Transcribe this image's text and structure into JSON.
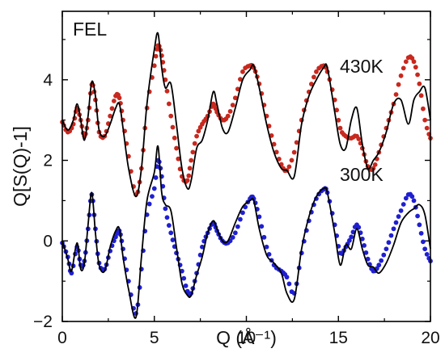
{
  "chart_data": {
    "type": "line",
    "title": "",
    "panel_label": "FEL",
    "xlabel": "Q (Å⁻¹)",
    "ylabel": "Q[S(Q)-1]",
    "xlim": [
      0,
      20
    ],
    "ylim": [
      -2,
      5.7
    ],
    "xticks": [
      0,
      5,
      10,
      15,
      20
    ],
    "xtick_labels": [
      "0",
      "5",
      "10",
      "15",
      "20"
    ],
    "yticks": [
      -2,
      0,
      2,
      4
    ],
    "ytick_labels": [
      "−2",
      "0",
      "2",
      "4"
    ],
    "grid": false,
    "annotations": [
      {
        "text": "430K",
        "x": 14.3,
        "y": 4.55
      },
      {
        "text": "300K",
        "x": 14.3,
        "y": 1.55
      }
    ],
    "colors": {
      "430K_points": "#c8281e",
      "300K_points": "#1f1fd2",
      "model": "#000000",
      "axes": "#000000"
    },
    "series": [
      {
        "group": "430K",
        "style": "dots",
        "color": "#c8281e",
        "x": [
          0.0,
          0.3,
          0.6,
          0.8,
          1.0,
          1.2,
          1.4,
          1.6,
          1.8,
          2.0,
          2.3,
          2.6,
          2.9,
          3.1,
          3.3,
          3.6,
          4.0,
          4.3,
          4.6,
          5.0,
          5.2,
          5.4,
          5.6,
          5.9,
          6.2,
          6.5,
          6.8,
          7.0,
          7.3,
          7.6,
          7.9,
          8.2,
          8.4,
          8.7,
          9.0,
          9.4,
          9.8,
          10.2,
          10.4,
          10.7,
          11.1,
          11.5,
          11.9,
          12.2,
          12.6,
          13.0,
          13.4,
          13.8,
          14.2,
          14.4,
          14.8,
          15.1,
          15.4,
          15.7,
          16.0,
          16.3,
          16.6,
          16.9,
          17.2,
          17.6,
          18.0,
          18.4,
          18.8,
          19.1,
          19.4,
          19.7,
          20.0
        ],
        "y": [
          2.95,
          2.7,
          2.9,
          3.3,
          3.0,
          2.6,
          3.0,
          3.88,
          3.5,
          2.7,
          2.6,
          3.1,
          3.6,
          3.55,
          3.0,
          2.1,
          1.15,
          1.8,
          3.3,
          4.35,
          4.85,
          4.6,
          4.0,
          3.1,
          2.3,
          1.6,
          1.5,
          2.0,
          2.6,
          2.9,
          3.1,
          3.4,
          3.2,
          3.0,
          3.1,
          3.55,
          4.2,
          4.35,
          4.3,
          3.9,
          3.1,
          2.4,
          1.9,
          1.75,
          2.2,
          3.0,
          3.7,
          4.2,
          4.35,
          4.2,
          3.5,
          2.8,
          2.6,
          2.55,
          2.6,
          2.3,
          1.85,
          1.8,
          2.2,
          2.8,
          3.4,
          4.1,
          4.55,
          4.45,
          3.9,
          3.0,
          2.55
        ]
      },
      {
        "group": "430K",
        "style": "line",
        "color": "#000000",
        "x": [
          0.0,
          0.3,
          0.6,
          0.8,
          1.0,
          1.2,
          1.4,
          1.6,
          1.8,
          2.0,
          2.3,
          2.6,
          2.9,
          3.1,
          3.3,
          3.6,
          4.0,
          4.3,
          4.6,
          5.0,
          5.2,
          5.4,
          5.6,
          5.9,
          6.2,
          6.5,
          6.8,
          7.0,
          7.3,
          7.6,
          7.9,
          8.2,
          8.4,
          8.7,
          9.0,
          9.4,
          9.8,
          10.2,
          10.4,
          10.7,
          11.1,
          11.5,
          11.9,
          12.2,
          12.6,
          13.0,
          13.4,
          13.8,
          14.2,
          14.4,
          14.8,
          15.1,
          15.4,
          15.7,
          16.0,
          16.3,
          16.6,
          16.9,
          17.2,
          17.6,
          18.0,
          18.4,
          18.8,
          19.1,
          19.4,
          19.7,
          20.0
        ],
        "y": [
          3.0,
          2.75,
          3.0,
          3.4,
          3.0,
          2.5,
          3.1,
          3.95,
          3.6,
          2.75,
          2.6,
          2.9,
          3.3,
          3.4,
          2.8,
          1.8,
          1.1,
          1.8,
          3.4,
          4.75,
          5.15,
          4.3,
          3.8,
          3.9,
          2.9,
          1.8,
          1.3,
          1.5,
          2.3,
          2.5,
          3.0,
          3.7,
          3.4,
          2.8,
          2.7,
          3.3,
          4.0,
          4.25,
          4.35,
          3.8,
          2.9,
          2.2,
          1.8,
          1.75,
          1.6,
          2.9,
          3.6,
          4.0,
          4.3,
          4.3,
          3.2,
          2.4,
          2.3,
          3.0,
          3.3,
          2.4,
          1.8,
          2.0,
          2.2,
          2.7,
          3.4,
          3.5,
          2.9,
          3.5,
          3.7,
          3.8,
          3.0
        ]
      },
      {
        "group": "300K",
        "style": "dots",
        "color": "#1f1fd2",
        "x": [
          0.0,
          0.3,
          0.5,
          0.8,
          1.0,
          1.2,
          1.4,
          1.6,
          1.8,
          2.0,
          2.3,
          2.6,
          2.9,
          3.1,
          3.3,
          3.6,
          4.0,
          4.3,
          4.6,
          5.0,
          5.2,
          5.4,
          5.6,
          5.9,
          6.2,
          6.5,
          6.8,
          7.0,
          7.3,
          7.6,
          7.9,
          8.2,
          8.4,
          8.7,
          9.0,
          9.4,
          9.8,
          10.2,
          10.4,
          10.7,
          11.1,
          11.5,
          11.9,
          12.2,
          12.6,
          13.0,
          13.4,
          13.8,
          14.2,
          14.4,
          14.8,
          15.1,
          15.4,
          15.7,
          16.0,
          16.3,
          16.6,
          16.9,
          17.2,
          17.6,
          18.0,
          18.4,
          18.8,
          19.1,
          19.4,
          19.7,
          20.0
        ],
        "y": [
          -0.05,
          -0.4,
          -0.8,
          -0.15,
          -0.6,
          -0.5,
          0.3,
          1.15,
          0.3,
          -0.55,
          -0.7,
          -0.25,
          0.1,
          0.25,
          -0.2,
          -1.0,
          -1.8,
          -0.7,
          0.65,
          1.3,
          2.0,
          1.6,
          0.8,
          0.2,
          -0.3,
          -0.75,
          -1.25,
          -1.3,
          -0.8,
          -0.15,
          0.2,
          0.45,
          0.25,
          0.0,
          -0.05,
          0.2,
          0.7,
          1.05,
          1.05,
          0.6,
          -0.15,
          -0.6,
          -0.75,
          -0.9,
          -1.3,
          -0.3,
          0.5,
          1.05,
          1.28,
          1.2,
          0.4,
          -0.3,
          -0.15,
          0.1,
          0.4,
          0.05,
          -0.45,
          -0.75,
          -0.6,
          -0.2,
          0.3,
          0.75,
          1.15,
          1.0,
          0.4,
          -0.2,
          -0.5
        ]
      },
      {
        "group": "300K",
        "style": "line",
        "color": "#000000",
        "x": [
          0.0,
          0.3,
          0.5,
          0.8,
          1.0,
          1.2,
          1.4,
          1.6,
          1.8,
          2.0,
          2.3,
          2.6,
          2.9,
          3.1,
          3.3,
          3.6,
          4.0,
          4.3,
          4.6,
          5.0,
          5.2,
          5.4,
          5.6,
          5.9,
          6.2,
          6.5,
          6.8,
          7.0,
          7.3,
          7.6,
          7.9,
          8.2,
          8.4,
          8.7,
          9.0,
          9.4,
          9.8,
          10.2,
          10.4,
          10.7,
          11.1,
          11.5,
          11.9,
          12.2,
          12.6,
          13.0,
          13.4,
          13.8,
          14.2,
          14.4,
          14.8,
          15.1,
          15.4,
          15.7,
          16.0,
          16.3,
          16.6,
          16.9,
          17.2,
          17.6,
          18.0,
          18.4,
          18.8,
          19.1,
          19.4,
          19.7,
          20.0
        ],
        "y": [
          0.0,
          -0.45,
          -0.75,
          -0.05,
          -0.7,
          -0.55,
          0.4,
          1.2,
          0.2,
          -0.6,
          -0.75,
          -0.15,
          0.25,
          0.3,
          -0.4,
          -1.2,
          -1.9,
          -0.4,
          1.0,
          1.7,
          2.35,
          1.2,
          0.9,
          0.75,
          -0.15,
          -1.05,
          -1.35,
          -1.35,
          -0.85,
          -0.4,
          0.2,
          0.5,
          0.3,
          0.0,
          0.0,
          0.45,
          0.85,
          1.0,
          1.0,
          0.3,
          -0.35,
          -0.55,
          -0.8,
          -1.3,
          -1.45,
          -0.2,
          0.6,
          1.1,
          1.3,
          1.2,
          0.2,
          -0.6,
          -0.1,
          -0.2,
          0.3,
          -0.2,
          -0.6,
          -0.65,
          -0.8,
          -0.55,
          -0.1,
          0.45,
          0.7,
          0.8,
          0.9,
          0.65,
          -0.2
        ]
      }
    ]
  }
}
